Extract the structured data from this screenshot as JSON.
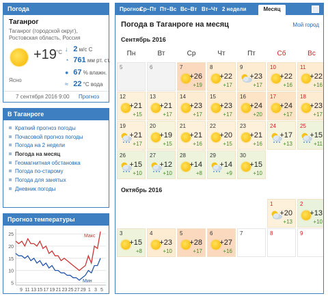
{
  "now": {
    "header": "Погода",
    "city": "Таганрог",
    "region": "Таганрог (городской округ), Ростовская область, Россия",
    "temp": "+19",
    "temp_unit": "°C",
    "wind": "2",
    "wind_unit": "м/с",
    "wind_dir": "С",
    "pressure": "761",
    "pressure_unit": "мм рт. ст.",
    "humidity": "67",
    "humidity_unit": "% влажн.",
    "water": "22",
    "water_unit": "°C вода",
    "condition": "Ясно",
    "date": "7 сентября 2016 9:00",
    "forecast_link": "Прогноз"
  },
  "city_menu": {
    "header": "В Таганроге",
    "items": [
      "Краткий прогноз погоды",
      "Почасовой прогноз погоды",
      "Погода на 2 недели",
      "Погода на месяц",
      "Геомагнитная обстановка",
      "Погода по-старому",
      "Погода для занятых",
      "Дневник погоды"
    ],
    "active": "Погода на месяц"
  },
  "temp_chart": {
    "header": "Прогноз температуры",
    "max_label": "Макс",
    "min_label": "Мин",
    "colors": {
      "max": "#cc3333",
      "min": "#2255aa"
    },
    "chart_data": {
      "type": "line",
      "y_ticks": [
        5,
        10,
        15,
        20,
        25
      ],
      "ylim": [
        4,
        27
      ],
      "x_ticks": [
        "9",
        "11",
        "13",
        "15",
        "17",
        "19",
        "21",
        "23",
        "25",
        "27",
        "29",
        "1",
        "3",
        "5"
      ],
      "series": [
        {
          "name": "Макс",
          "values": [
            22,
            21,
            22,
            20,
            23,
            21,
            21,
            20,
            22,
            19,
            20,
            17,
            18,
            16,
            16,
            14,
            15,
            14,
            13,
            12,
            11,
            10,
            11,
            12,
            16,
            13,
            20,
            19,
            26
          ]
        },
        {
          "name": "Мин",
          "values": [
            17,
            16,
            16,
            15,
            16,
            14,
            15,
            13,
            14,
            12,
            13,
            11,
            12,
            10,
            10,
            9,
            9,
            8,
            8,
            7,
            7,
            6,
            7,
            8,
            10,
            9,
            12,
            12,
            15
          ]
        }
      ]
    }
  },
  "main": {
    "tabs": [
      "Прогноз",
      "Ср–Пт",
      "Пт–Вс",
      "Вс–Вт",
      "Вт–Чт",
      "2 недели",
      "Месяц"
    ],
    "active_tab": "Месяц",
    "title": "Погода в Таганроге на месяц",
    "my_city": "Мой город",
    "weekdays": [
      "Пн",
      "Вт",
      "Ср",
      "Чт",
      "Пт",
      "Сб",
      "Вс"
    ],
    "months": [
      {
        "title": "Сентябрь 2016",
        "weeks": [
          [
            {
              "d": "5",
              "past": true
            },
            {
              "d": "6",
              "past": true
            },
            {
              "d": "7",
              "hi": "+26",
              "lo": "+19",
              "icon": "sun"
            },
            {
              "d": "8",
              "hi": "+22",
              "lo": "+17",
              "icon": "sun"
            },
            {
              "d": "9",
              "hi": "+23",
              "lo": "+17",
              "icon": "cloud-sun"
            },
            {
              "d": "10",
              "hi": "+22",
              "lo": "+16",
              "icon": "sun"
            },
            {
              "d": "11",
              "hi": "+22",
              "lo": "+16",
              "icon": "sun"
            }
          ],
          [
            {
              "d": "12",
              "hi": "+21",
              "lo": "+15",
              "icon": "sun"
            },
            {
              "d": "13",
              "hi": "+21",
              "lo": "+17",
              "icon": "sun"
            },
            {
              "d": "14",
              "hi": "+23",
              "lo": "+17",
              "icon": "sun"
            },
            {
              "d": "15",
              "hi": "+23",
              "lo": "+17",
              "icon": "sun"
            },
            {
              "d": "16",
              "hi": "+24",
              "lo": "+20",
              "icon": "sun"
            },
            {
              "d": "17",
              "hi": "+24",
              "lo": "+17",
              "icon": "sun"
            },
            {
              "d": "18",
              "hi": "+23",
              "lo": "+17",
              "icon": "sun"
            }
          ],
          [
            {
              "d": "19",
              "hi": "+21",
              "lo": "+17",
              "icon": "rain"
            },
            {
              "d": "20",
              "hi": "+19",
              "lo": "+15",
              "icon": "sun"
            },
            {
              "d": "21",
              "hi": "+21",
              "lo": "+16",
              "icon": "sun"
            },
            {
              "d": "22",
              "hi": "+20",
              "lo": "+15",
              "icon": "sun"
            },
            {
              "d": "23",
              "hi": "+21",
              "lo": "+16",
              "icon": "sun"
            },
            {
              "d": "24",
              "hi": "+17",
              "lo": "+13",
              "icon": "rain"
            },
            {
              "d": "25",
              "hi": "+15",
              "lo": "+11",
              "icon": "rain"
            }
          ],
          [
            {
              "d": "26",
              "hi": "+15",
              "lo": "+10",
              "icon": "rain"
            },
            {
              "d": "27",
              "hi": "+12",
              "lo": "+10",
              "icon": "rain"
            },
            {
              "d": "28",
              "hi": "+14",
              "lo": "+8",
              "icon": "sun"
            },
            {
              "d": "29",
              "hi": "+14",
              "lo": "+9",
              "icon": "rain"
            },
            {
              "d": "30",
              "hi": "+15",
              "lo": "+10",
              "icon": "sun"
            }
          ]
        ]
      },
      {
        "title": "Октябрь 2016",
        "weeks": [
          [
            null,
            null,
            null,
            null,
            null,
            {
              "d": "1",
              "hi": "+20",
              "lo": "+13",
              "icon": "cloud-sun"
            },
            {
              "d": "2",
              "hi": "+13",
              "lo": "+10",
              "icon": "sun"
            }
          ],
          [
            {
              "d": "3",
              "hi": "+15",
              "lo": "+8",
              "icon": "sun"
            },
            {
              "d": "4",
              "hi": "+23",
              "lo": "+10",
              "icon": "sun"
            },
            {
              "d": "5",
              "hi": "+28",
              "lo": "+17",
              "icon": "sun"
            },
            {
              "d": "6",
              "hi": "+27",
              "lo": "+16",
              "icon": "sun"
            },
            {
              "d": "7"
            },
            {
              "d": "8"
            },
            {
              "d": "9"
            }
          ]
        ]
      }
    ]
  }
}
